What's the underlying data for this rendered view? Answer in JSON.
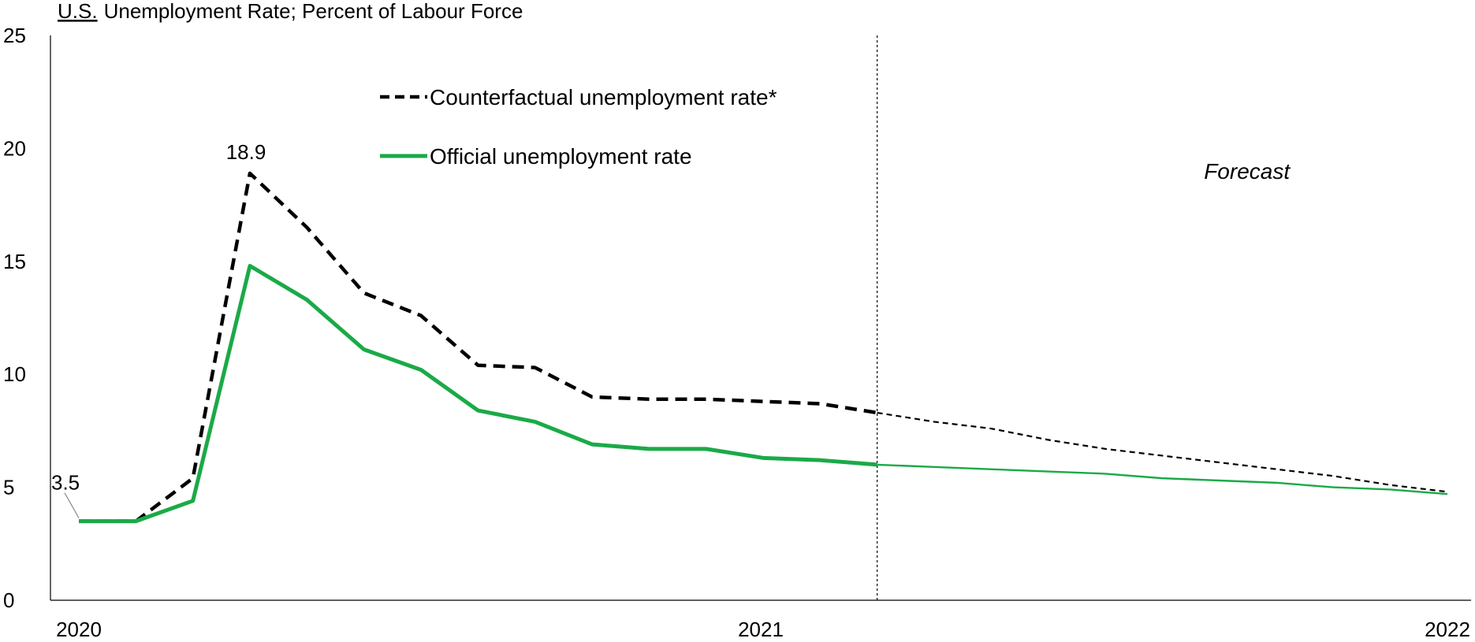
{
  "chart_data": {
    "type": "line",
    "title": "Unemployment Rate; Percent of Labour Force",
    "title_prefix": "U.S.",
    "x_ticks": [
      "2020",
      "2021",
      "2022"
    ],
    "y_ticks": [
      "0",
      "5",
      "10",
      "15",
      "20",
      "25"
    ],
    "ylim": [
      0,
      25
    ],
    "xlim": [
      "2020-01",
      "2022-01"
    ],
    "grid": false,
    "legend_position": "top-left",
    "forecast_start": "2021-03",
    "annotations": [
      {
        "text": "Forecast",
        "x": "2021-09",
        "y": 19
      }
    ],
    "data_labels": [
      {
        "text": "3.5",
        "series": "counterfactual",
        "x": "2020-01"
      },
      {
        "text": "18.9",
        "series": "counterfactual",
        "x": "2020-04"
      }
    ],
    "series": [
      {
        "name": "Counterfactual unemployment rate*",
        "id": "counterfactual",
        "color": "#000000",
        "style": "dashed",
        "x": [
          "2020-01",
          "2020-02",
          "2020-03",
          "2020-04",
          "2020-05",
          "2020-06",
          "2020-07",
          "2020-08",
          "2020-09",
          "2020-10",
          "2020-11",
          "2020-12",
          "2021-01",
          "2021-02",
          "2021-03",
          "2021-04",
          "2021-05",
          "2021-06",
          "2021-07",
          "2021-08",
          "2021-09",
          "2021-10",
          "2021-11",
          "2021-12",
          "2022-01"
        ],
        "values": [
          3.5,
          3.5,
          5.4,
          18.9,
          16.5,
          13.6,
          12.6,
          10.4,
          10.3,
          9.0,
          8.9,
          8.9,
          8.8,
          8.7,
          8.3,
          7.9,
          7.6,
          7.1,
          6.7,
          6.4,
          6.1,
          5.8,
          5.5,
          5.1,
          4.8
        ]
      },
      {
        "name": "Official unemployment rate",
        "id": "official",
        "color": "#1AAA47",
        "style": "solid",
        "x": [
          "2020-01",
          "2020-02",
          "2020-03",
          "2020-04",
          "2020-05",
          "2020-06",
          "2020-07",
          "2020-08",
          "2020-09",
          "2020-10",
          "2020-11",
          "2020-12",
          "2021-01",
          "2021-02",
          "2021-03",
          "2021-04",
          "2021-05",
          "2021-06",
          "2021-07",
          "2021-08",
          "2021-09",
          "2021-10",
          "2021-11",
          "2021-12",
          "2022-01"
        ],
        "values": [
          3.5,
          3.5,
          4.4,
          14.8,
          13.3,
          11.1,
          10.2,
          8.4,
          7.9,
          6.9,
          6.7,
          6.7,
          6.3,
          6.2,
          6.0,
          5.9,
          5.8,
          5.7,
          5.6,
          5.4,
          5.3,
          5.2,
          5.0,
          4.9,
          4.7
        ]
      }
    ]
  }
}
